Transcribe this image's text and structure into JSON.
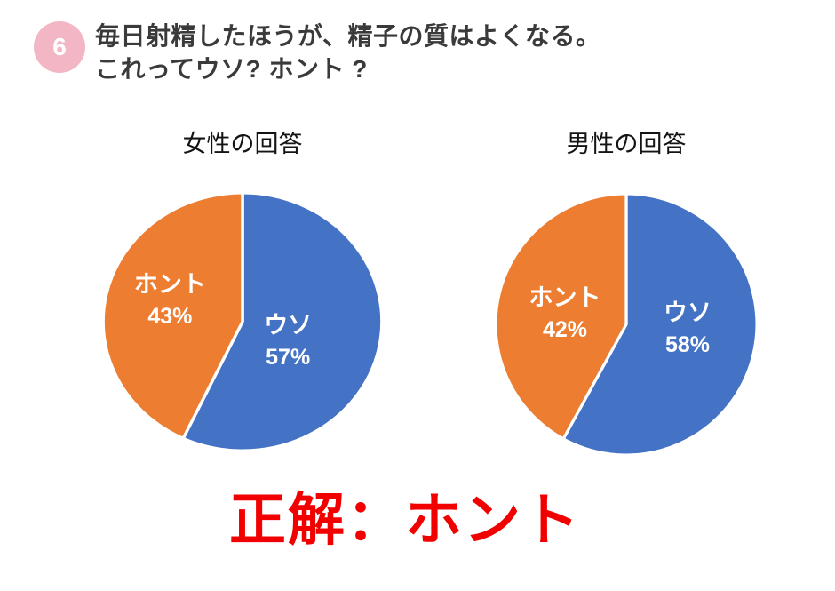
{
  "header": {
    "number": "6",
    "badge_color": "#f2b6c4",
    "title_line1": "毎日射精したほうが、精子の質はよくなる。",
    "title_line2": "これってウソ? ホント ?",
    "title_color": "#3a3a3a"
  },
  "chart_data": [
    {
      "type": "pie",
      "title": "女性の回答",
      "labels": [
        "ウソ",
        "ホント"
      ],
      "values": [
        57,
        43
      ],
      "pct_labels": [
        "57%",
        "43%"
      ],
      "colors": [
        "#4472c4",
        "#ed7d31"
      ],
      "slice_border_color": "#ffffff",
      "start_angle_deg": 0,
      "direction": "clockwise",
      "label_position": "inside",
      "legend": "none"
    },
    {
      "type": "pie",
      "title": "男性の回答",
      "labels": [
        "ウソ",
        "ホント"
      ],
      "values": [
        58,
        42
      ],
      "pct_labels": [
        "58%",
        "42%"
      ],
      "colors": [
        "#4472c4",
        "#ed7d31"
      ],
      "slice_border_color": "#ffffff",
      "start_angle_deg": 0,
      "direction": "clockwise",
      "label_position": "inside",
      "legend": "none"
    }
  ],
  "answer": {
    "text": "正解：ホント",
    "color": "#f20000"
  }
}
